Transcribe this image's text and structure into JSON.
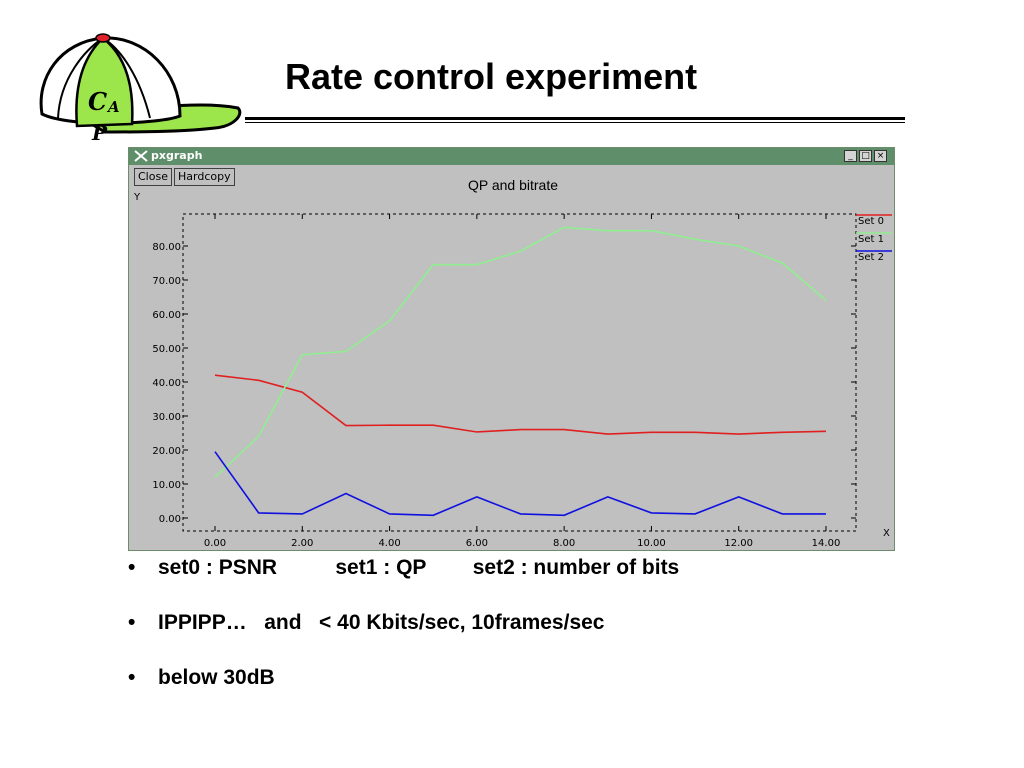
{
  "slide": {
    "title": "Rate control experiment",
    "logo_text_1": "C",
    "logo_text_2": "A",
    "logo_text_3": "P",
    "bullets": [
      {
        "marker": "•",
        "text": "set0 : PSNR          set1 : QP        set2 : number of bits"
      },
      {
        "marker": "•",
        "text": "IPPIPP…   and   < 40 Kbits/sec, 10frames/sec"
      },
      {
        "marker": "•",
        "text": "below 30dB"
      }
    ]
  },
  "window": {
    "title": "pxgraph",
    "x_icon": "x-logo-icon",
    "buttons": {
      "minimize": "_",
      "maximize": "□",
      "close": "×"
    },
    "close_label": "Close",
    "hardcopy_label": "Hardcopy"
  },
  "chart_data": {
    "type": "line",
    "title": "QP and bitrate",
    "xlabel": "X",
    "ylabel": "Y",
    "xlim": [
      0,
      14
    ],
    "ylim": [
      0,
      85
    ],
    "grid": false,
    "legend_placement": "right",
    "x_ticks": [
      "0.00",
      "2.00",
      "4.00",
      "6.00",
      "8.00",
      "10.00",
      "12.00",
      "14.00"
    ],
    "y_ticks": [
      "0.00",
      "10.00",
      "20.00",
      "30.00",
      "40.00",
      "50.00",
      "60.00",
      "70.00",
      "80.00"
    ],
    "x": [
      0,
      1,
      2,
      3,
      4,
      5,
      6,
      7,
      8,
      9,
      10,
      11,
      12,
      13,
      14
    ],
    "series": [
      {
        "name": "Set 0",
        "color": "#e02020",
        "values": [
          42,
          40.5,
          37,
          27.2,
          27.3,
          27.3,
          25.3,
          26,
          26,
          24.7,
          25.2,
          25.2,
          24.7,
          25.2,
          25.5
        ]
      },
      {
        "name": "Set 1",
        "color": "#90ee90",
        "values": [
          12,
          24,
          48,
          49,
          58,
          74.5,
          74.5,
          78.5,
          85.5,
          84.5,
          84.5,
          82,
          80,
          75,
          64
        ]
      },
      {
        "name": "Set 2",
        "color": "#1010e0",
        "values": [
          19.5,
          1.5,
          1.2,
          7.2,
          1.2,
          0.8,
          6.2,
          1.2,
          0.8,
          6.2,
          1.5,
          1.2,
          6.2,
          1.2,
          1.2
        ]
      }
    ]
  }
}
